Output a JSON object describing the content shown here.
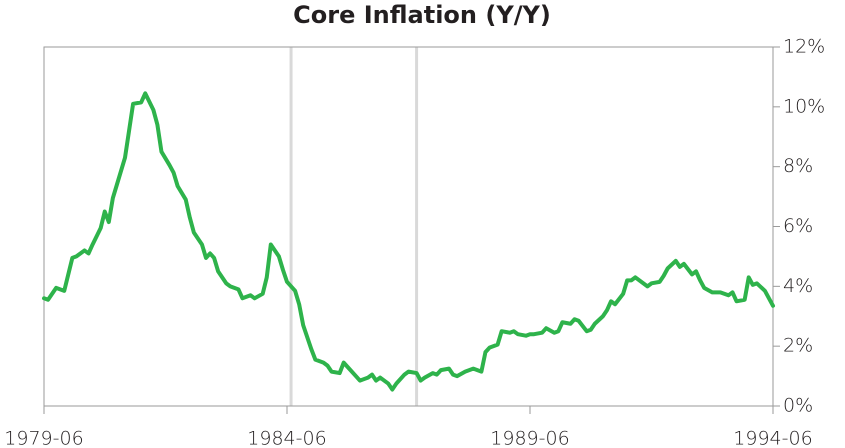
{
  "chart_data": {
    "type": "line",
    "title": "Core Inflation (Y/Y)",
    "x": [
      "1979-06",
      "1979-07",
      "1979-09",
      "1979-11",
      "1980-01",
      "1980-02",
      "1980-04",
      "1980-05",
      "1980-06",
      "1980-08",
      "1980-09",
      "1980-10",
      "1980-11",
      "1980-12",
      "1981-02",
      "1981-03",
      "1981-04",
      "1981-06",
      "1981-07",
      "1981-09",
      "1981-10",
      "1981-11",
      "1982-01",
      "1982-02",
      "1982-03",
      "1982-05",
      "1982-06",
      "1982-07",
      "1982-09",
      "1982-10",
      "1982-11",
      "1982-12",
      "1983-01",
      "1983-03",
      "1983-04",
      "1983-06",
      "1983-07",
      "1983-09",
      "1983-10",
      "1983-12",
      "1984-01",
      "1984-02",
      "1984-04",
      "1984-05",
      "1984-06",
      "1984-08",
      "1984-09",
      "1984-10",
      "1984-12",
      "1985-01",
      "1985-03",
      "1985-04",
      "1985-05",
      "1985-07",
      "1985-08",
      "1985-09",
      "1985-11",
      "1985-12",
      "1986-02",
      "1986-03",
      "1986-04",
      "1986-05",
      "1986-07",
      "1986-08",
      "1986-09",
      "1986-11",
      "1986-12",
      "1987-02",
      "1987-03",
      "1987-04",
      "1987-06",
      "1987-07",
      "1987-08",
      "1987-10",
      "1987-11",
      "1987-12",
      "1988-02",
      "1988-03",
      "1988-04",
      "1988-06",
      "1988-07",
      "1988-08",
      "1988-10",
      "1988-11",
      "1989-01",
      "1989-02",
      "1989-03",
      "1989-05",
      "1989-06",
      "1989-07",
      "1989-09",
      "1989-10",
      "1989-12",
      "1990-01",
      "1990-02",
      "1990-04",
      "1990-05",
      "1990-06",
      "1990-08",
      "1990-09",
      "1990-10",
      "1990-12",
      "1991-01",
      "1991-02",
      "1991-03",
      "1991-05",
      "1991-06",
      "1991-07",
      "1991-08",
      "1991-10",
      "1991-11",
      "1991-12",
      "1992-02",
      "1992-03",
      "1992-04",
      "1992-06",
      "1992-07",
      "1992-08",
      "1992-10",
      "1992-11",
      "1992-12",
      "1993-01",
      "1993-03",
      "1993-04",
      "1993-05",
      "1993-07",
      "1993-08",
      "1993-09",
      "1993-11",
      "1993-12",
      "1994-01",
      "1994-02",
      "1994-04",
      "1994-05",
      "1994-06"
    ],
    "series": [
      {
        "color": "#2eb34b",
        "values": [
          3.6,
          3.55,
          3.95,
          3.85,
          4.95,
          5.0,
          5.2,
          5.1,
          5.4,
          5.95,
          6.5,
          6.15,
          6.95,
          7.4,
          8.3,
          9.2,
          10.1,
          10.15,
          10.45,
          9.9,
          9.4,
          8.5,
          8.05,
          7.8,
          7.35,
          6.9,
          6.3,
          5.8,
          5.4,
          4.95,
          5.1,
          4.95,
          4.5,
          4.1,
          4.0,
          3.9,
          3.6,
          3.7,
          3.6,
          3.75,
          4.3,
          5.4,
          5.0,
          4.55,
          4.15,
          3.85,
          3.4,
          2.7,
          1.9,
          1.55,
          1.45,
          1.35,
          1.15,
          1.1,
          1.45,
          1.3,
          1.0,
          0.85,
          0.95,
          1.05,
          0.85,
          0.95,
          0.75,
          0.55,
          0.75,
          1.05,
          1.15,
          1.1,
          0.85,
          0.95,
          1.1,
          1.05,
          1.2,
          1.25,
          1.05,
          1.0,
          1.15,
          1.2,
          1.25,
          1.15,
          1.8,
          1.95,
          2.05,
          2.5,
          2.45,
          2.5,
          2.4,
          2.35,
          2.4,
          2.4,
          2.45,
          2.6,
          2.45,
          2.5,
          2.8,
          2.75,
          2.9,
          2.85,
          2.5,
          2.55,
          2.75,
          3.0,
          3.2,
          3.5,
          3.4,
          3.75,
          4.2,
          4.2,
          4.3,
          4.1,
          4.0,
          4.1,
          4.15,
          4.35,
          4.6,
          4.85,
          4.65,
          4.75,
          4.4,
          4.5,
          4.2,
          3.95,
          3.8,
          3.8,
          3.8,
          3.7,
          3.8,
          3.5,
          3.55,
          4.3,
          4.05,
          4.1,
          3.85,
          3.6,
          3.35
        ]
      }
    ],
    "xlim": [
      "1979-06",
      "1994-06"
    ],
    "xticks": [
      "1979-06",
      "1984-06",
      "1989-06",
      "1994-06"
    ],
    "ylim": [
      0,
      12
    ],
    "yticks": [
      {
        "value": 0,
        "label": "0%"
      },
      {
        "value": 2,
        "label": "2%"
      },
      {
        "value": 4,
        "label": "4%"
      },
      {
        "value": 6,
        "label": "6%"
      },
      {
        "value": 8,
        "label": "8%"
      },
      {
        "value": 10,
        "label": "10%"
      },
      {
        "value": 12,
        "label": "12%"
      }
    ],
    "y_axis_side": "right",
    "vlines": [
      "1984-07",
      "1987-02"
    ],
    "vline_color": "#d9d9d9"
  }
}
